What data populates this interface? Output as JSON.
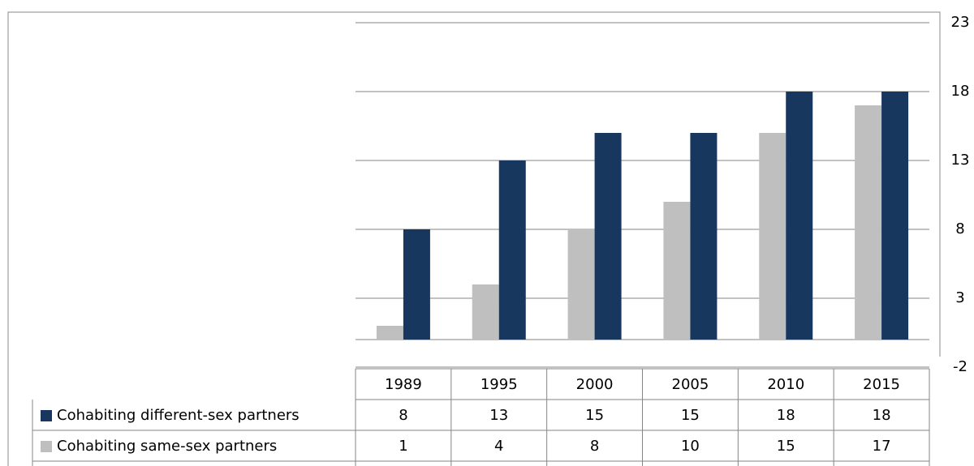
{
  "chart_data": {
    "type": "bar",
    "categories": [
      "1989",
      "1995",
      "2000",
      "2005",
      "2010",
      "2015"
    ],
    "series": [
      {
        "name": "Cohabiting different-sex partners",
        "color": "#17375e",
        "values": [
          8,
          13,
          15,
          15,
          18,
          18
        ]
      },
      {
        "name": "Cohabiting same-sex partners",
        "color": "#bfbfbf",
        "values": [
          1,
          4,
          8,
          10,
          15,
          17
        ]
      }
    ],
    "ylim": [
      -2,
      23
    ],
    "yticks": [
      -2,
      3,
      8,
      13,
      18,
      23
    ],
    "grid": true,
    "y_axis_side": "right",
    "data_table": true
  }
}
